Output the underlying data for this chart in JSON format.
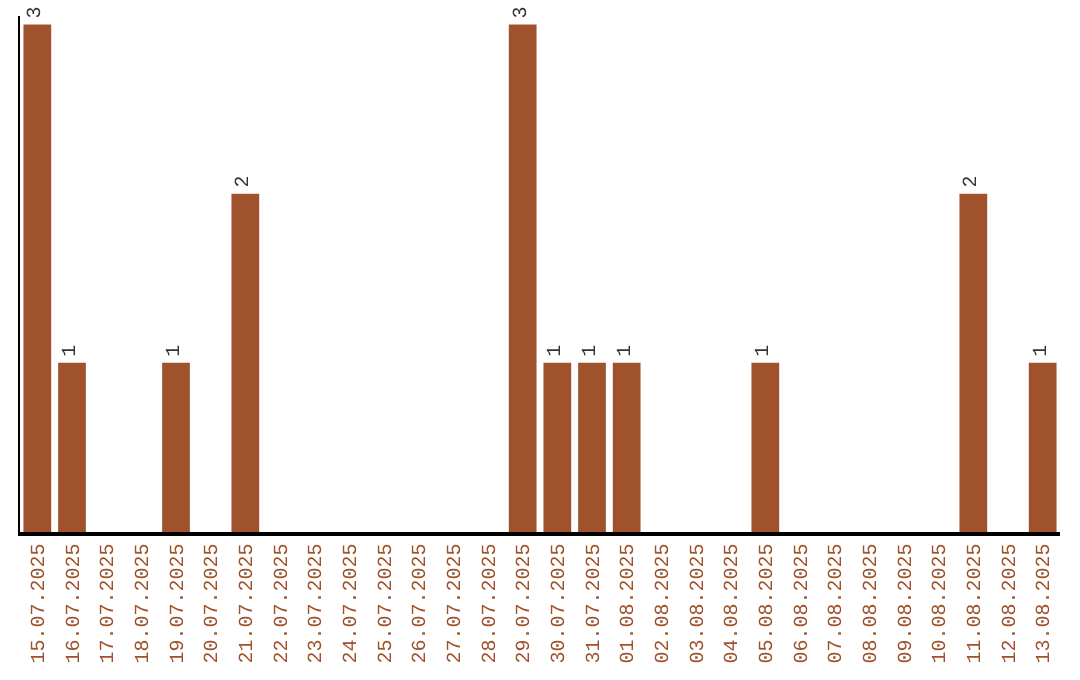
{
  "chart_data": {
    "type": "bar",
    "categories": [
      "15.07.2025",
      "16.07.2025",
      "17.07.2025",
      "18.07.2025",
      "19.07.2025",
      "20.07.2025",
      "21.07.2025",
      "22.07.2025",
      "23.07.2025",
      "24.07.2025",
      "25.07.2025",
      "26.07.2025",
      "27.07.2025",
      "28.07.2025",
      "29.07.2025",
      "30.07.2025",
      "31.07.2025",
      "01.08.2025",
      "02.08.2025",
      "03.08.2025",
      "04.08.2025",
      "05.08.2025",
      "06.08.2025",
      "07.08.2025",
      "08.08.2025",
      "09.08.2025",
      "10.08.2025",
      "11.08.2025",
      "12.08.2025",
      "13.08.2025"
    ],
    "values": [
      3,
      1,
      0,
      0,
      1,
      0,
      2,
      0,
      0,
      0,
      0,
      0,
      0,
      0,
      3,
      1,
      1,
      1,
      0,
      0,
      0,
      1,
      0,
      0,
      0,
      0,
      0,
      2,
      0,
      1
    ],
    "value_labels": [
      "3",
      "1",
      null,
      null,
      "1",
      null,
      "2",
      null,
      null,
      null,
      null,
      null,
      null,
      null,
      "3",
      "1",
      "1",
      "1",
      null,
      null,
      null,
      "1",
      null,
      null,
      null,
      null,
      null,
      "2",
      null,
      "1"
    ],
    "color": "#a0522d",
    "ylim": [
      0,
      3.05
    ],
    "tick_labels": "x"
  }
}
